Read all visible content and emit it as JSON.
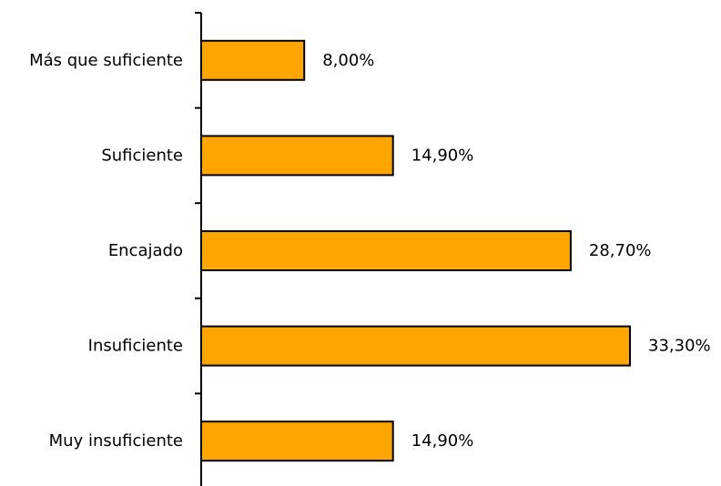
{
  "chart_data": {
    "type": "bar",
    "orientation": "horizontal",
    "categories": [
      "Más que suficiente",
      "Suficiente",
      "Encajado",
      "Insuficiente",
      "Muy insuficiente"
    ],
    "values": [
      8.0,
      14.9,
      28.7,
      33.3,
      14.9
    ],
    "value_labels": [
      "8,00%",
      "14,90%",
      "28,70%",
      "33,30%",
      "14,90%"
    ],
    "xlim": [
      0,
      33.3
    ],
    "grid": false,
    "legend": "none",
    "bar_color": "#FFA500",
    "bar_outline_color": "#000000"
  }
}
